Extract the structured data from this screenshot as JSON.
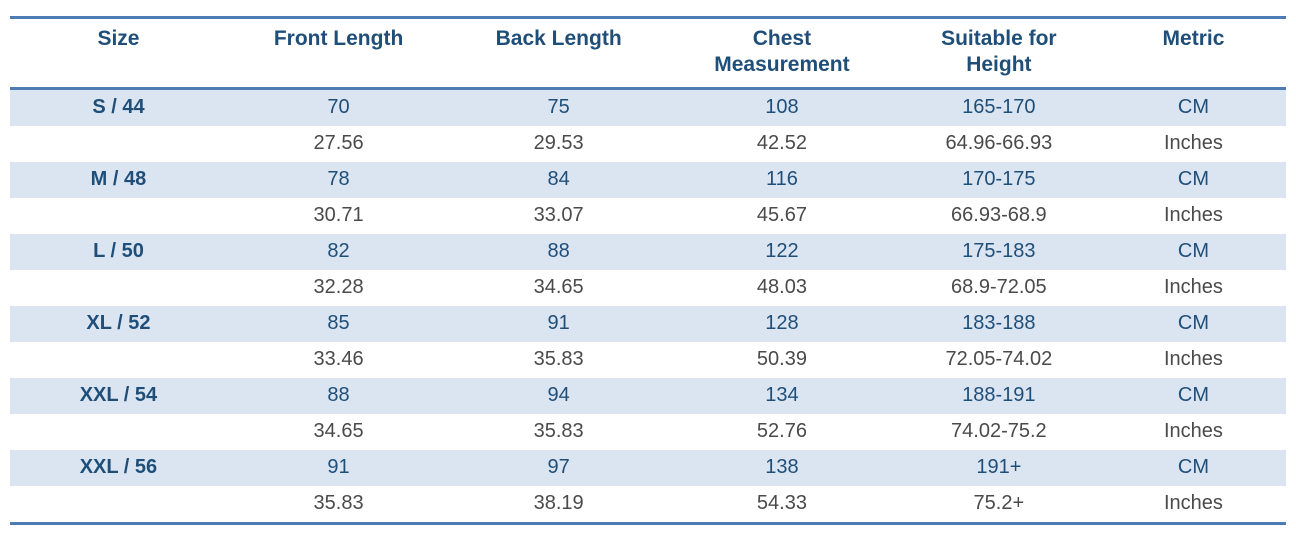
{
  "colors": {
    "border": "#4d7cb5",
    "header_text": "#1f4e79",
    "cm_row_bg": "#dbe5f1",
    "cm_row_text": "#1f4e79",
    "inches_row_text": "#4a4a4a"
  },
  "chart_data": {
    "type": "table",
    "columns": [
      "Size",
      "Front Length",
      "Back Length",
      "Chest Measurement",
      "Suitable for Height",
      "Metric"
    ],
    "rows": [
      [
        "S / 44",
        "70",
        "75",
        "108",
        "165-170",
        "CM"
      ],
      [
        "",
        "27.56",
        "29.53",
        "42.52",
        "64.96-66.93",
        "Inches"
      ],
      [
        "M / 48",
        "78",
        "84",
        "116",
        "170-175",
        "CM"
      ],
      [
        "",
        "30.71",
        "33.07",
        "45.67",
        "66.93-68.9",
        "Inches"
      ],
      [
        "L / 50",
        "82",
        "88",
        "122",
        "175-183",
        "CM"
      ],
      [
        "",
        "32.28",
        "34.65",
        "48.03",
        "68.9-72.05",
        "Inches"
      ],
      [
        "XL / 52",
        "85",
        "91",
        "128",
        "183-188",
        "CM"
      ],
      [
        "",
        "33.46",
        "35.83",
        "50.39",
        "72.05-74.02",
        "Inches"
      ],
      [
        "XXL / 54",
        "88",
        "94",
        "134",
        "188-191",
        "CM"
      ],
      [
        "",
        "34.65",
        "35.83",
        "52.76",
        "74.02-75.2",
        "Inches"
      ],
      [
        "XXL / 56",
        "91",
        "97",
        "138",
        "191+",
        "CM"
      ],
      [
        "",
        "35.83",
        "38.19",
        "54.33",
        "75.2+",
        "Inches"
      ]
    ],
    "layout": {
      "grid": "off",
      "alternating_row_highlight": "CM rows shaded light blue",
      "borders": "top, header-bottom, table-bottom horizontal rules only"
    }
  }
}
